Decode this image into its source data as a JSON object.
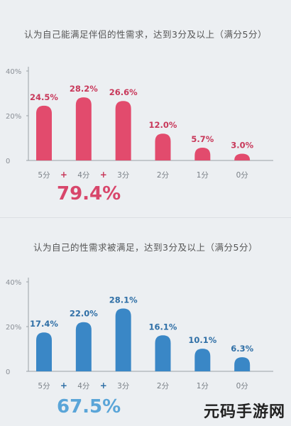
{
  "watermark_text": "元码手游网",
  "chart_data": [
    {
      "type": "bar",
      "title": "认为自己能满足伴侣的性需求，达到3分及以上（满分5分）",
      "categories": [
        "5分",
        "4分",
        "3分",
        "2分",
        "1分",
        "0分"
      ],
      "values": [
        24.5,
        28.2,
        26.6,
        12.0,
        5.7,
        3.0
      ],
      "value_labels": [
        "24.5%",
        "28.2%",
        "26.6%",
        "12.0%",
        "5.7%",
        "3.0%"
      ],
      "yticks": [
        "40%",
        "20%",
        "0"
      ],
      "ylim": [
        0,
        40
      ],
      "grid": false,
      "plus_sign": "+",
      "total_label": "79.4%",
      "color": "#e24b6d",
      "label_color": "#c8385a"
    },
    {
      "type": "bar",
      "title": "认为自己的性需求被满足，达到3分及以上（满分5分）",
      "categories": [
        "5分",
        "4分",
        "3分",
        "2分",
        "1分",
        "0分"
      ],
      "values": [
        17.4,
        22.0,
        28.1,
        16.1,
        10.1,
        6.3
      ],
      "value_labels": [
        "17.4%",
        "22.0%",
        "28.1%",
        "16.1%",
        "10.1%",
        "6.3%"
      ],
      "yticks": [
        "40%",
        "20%",
        "0"
      ],
      "ylim": [
        0,
        40
      ],
      "grid": false,
      "plus_sign": "+",
      "total_label": "67.5%",
      "color": "#3a87c6",
      "label_color": "#2f6fa6"
    }
  ]
}
